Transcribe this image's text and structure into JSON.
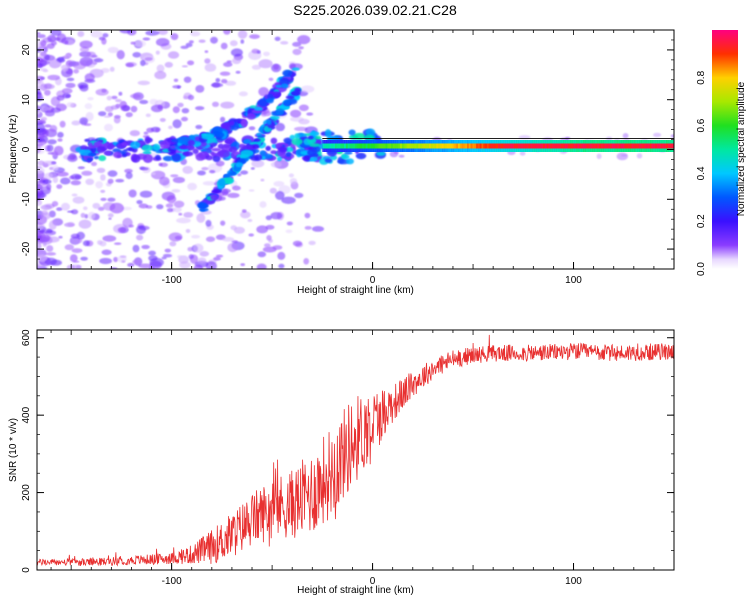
{
  "title": "S225.2026.039.02.21.C28",
  "chart_data": [
    {
      "type": "heatmap",
      "panel": "top",
      "xlabel": "Height of straight line (km)",
      "ylabel": "Frequency (Hz)",
      "xlim": [
        -167,
        150
      ],
      "ylim": [
        -24,
        24
      ],
      "xticks": [
        -100,
        0,
        100
      ],
      "yticks": [
        -20,
        -10,
        0,
        10,
        20
      ],
      "colorbar": {
        "label": "Normalized spectral amplitude",
        "range": [
          0,
          1
        ],
        "ticks": [
          "0.0",
          "0.2",
          "0.4",
          "0.6",
          "0.8"
        ]
      },
      "features": [
        {
          "name": "horizontal tone",
          "x": [
            -25,
            150
          ],
          "freq": 0.7,
          "amplitude": 0.95
        },
        {
          "name": "upper rising branch",
          "x": [
            -100,
            -37
          ],
          "freq": [
            1,
            17
          ],
          "amplitude": 0.35
        },
        {
          "name": "lower rising branch",
          "x": [
            -85,
            -37
          ],
          "freq": [
            -12,
            12
          ],
          "amplitude": 0.4
        },
        {
          "name": "main band",
          "x": [
            -145,
            -25
          ],
          "freq": 0,
          "amplitude": 0.3
        }
      ]
    },
    {
      "type": "line",
      "panel": "bottom",
      "xlabel": "Height of straight line (km)",
      "ylabel": "SNR (10 * v/v)",
      "xlim": [
        -167,
        150
      ],
      "ylim": [
        0,
        620
      ],
      "xticks": [
        -100,
        0,
        100
      ],
      "yticks": [
        0,
        200,
        400,
        600
      ],
      "series": [
        {
          "name": "SNR",
          "color": "#e83030",
          "x": [
            -167,
            -140,
            -120,
            -100,
            -90,
            -80,
            -70,
            -60,
            -50,
            -40,
            -30,
            -20,
            -10,
            0,
            10,
            20,
            30,
            40,
            50,
            60,
            80,
            100,
            120,
            150
          ],
          "values": [
            20,
            20,
            25,
            30,
            40,
            60,
            90,
            130,
            160,
            170,
            200,
            260,
            330,
            380,
            430,
            480,
            520,
            545,
            555,
            560,
            560,
            565,
            560,
            565
          ],
          "noise": [
            8,
            10,
            12,
            15,
            25,
            45,
            60,
            70,
            80,
            90,
            110,
            120,
            120,
            90,
            50,
            35,
            28,
            25,
            22,
            22,
            22,
            22,
            22,
            22
          ]
        }
      ]
    }
  ]
}
